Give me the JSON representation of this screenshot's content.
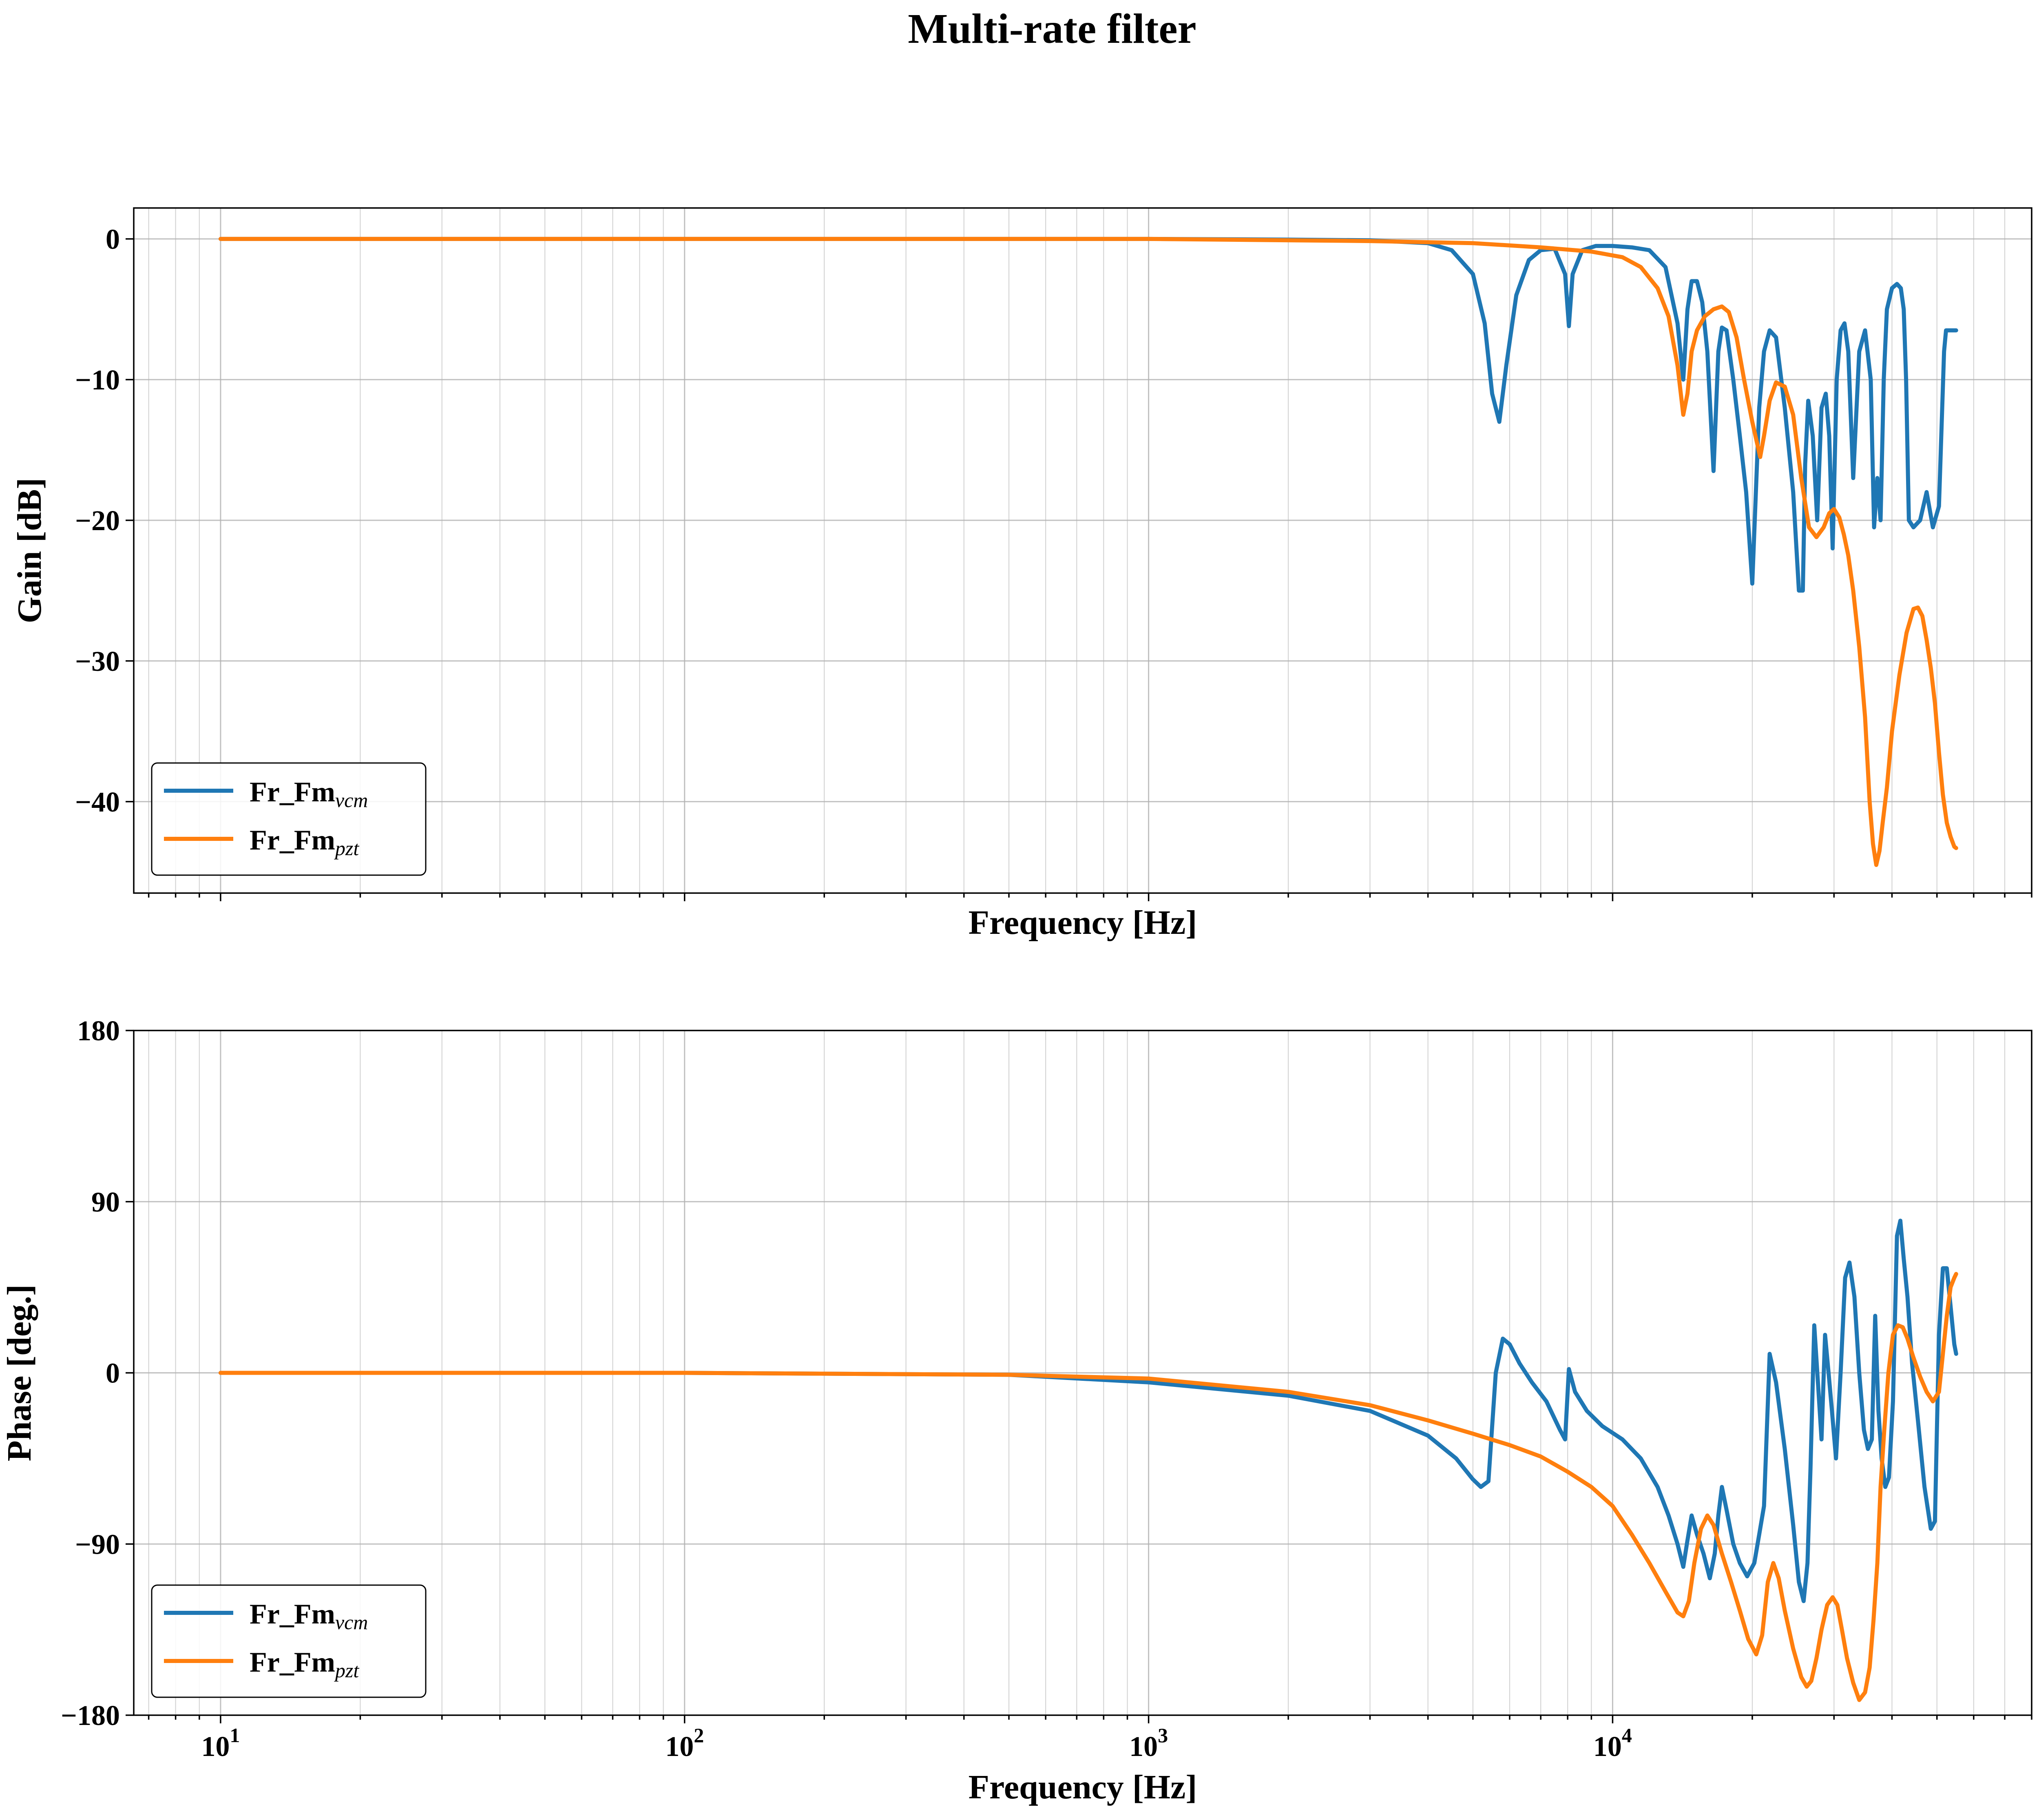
{
  "title": "Multi-rate filter",
  "colors": {
    "vcm": "#1f77b4",
    "pzt": "#ff7f0e",
    "grid": "#b0b0b0"
  },
  "chart_data": [
    {
      "type": "line",
      "name": "gain-chart",
      "xlabel": "Frequency [Hz]",
      "ylabel": "Gain [dB]",
      "xscale": "log",
      "xlim": [
        6.5,
        80000
      ],
      "ylim": [
        -46.5,
        2.2
      ],
      "yticks": [
        0,
        -10,
        -20,
        -30,
        -40
      ],
      "ytick_labels": [
        "0",
        "−10",
        "−20",
        "−30",
        "−40"
      ],
      "grid": true,
      "legend_position": "lower-left",
      "series": [
        {
          "name": "Fr_Fm",
          "name_sub": "vcm",
          "x": [
            10,
            100,
            1000,
            2000,
            3000,
            4000,
            4500,
            5000,
            5300,
            5500,
            5700,
            5900,
            6200,
            6600,
            7000,
            7500,
            7900,
            8050,
            8200,
            8600,
            9200,
            10000,
            11000,
            12000,
            13000,
            13800,
            14200,
            14500,
            14800,
            15200,
            15600,
            16000,
            16500,
            16900,
            17200,
            17600,
            18200,
            18800,
            19400,
            20000,
            20700,
            21200,
            21800,
            22500,
            23500,
            24500,
            25200,
            25700,
            26000,
            26400,
            27000,
            27600,
            28200,
            28800,
            29300,
            29800,
            30400,
            31000,
            31600,
            32200,
            33000,
            34000,
            35000,
            36000,
            36600,
            37200,
            37800,
            38400,
            39000,
            40000,
            41000,
            41800,
            42400,
            42900,
            43500,
            44500,
            46000,
            47500,
            49000,
            50500,
            51800,
            52300,
            52700,
            53300,
            54200,
            55000
          ],
          "y": [
            0,
            0,
            0,
            -0.05,
            -0.1,
            -0.3,
            -0.8,
            -2.5,
            -6,
            -11,
            -13,
            -9,
            -4,
            -1.5,
            -0.8,
            -0.7,
            -2.5,
            -6.2,
            -2.5,
            -0.8,
            -0.5,
            -0.5,
            -0.6,
            -0.8,
            -2,
            -6,
            -10,
            -5,
            -3,
            -3,
            -4.5,
            -8,
            -16.5,
            -8,
            -6.3,
            -6.5,
            -10,
            -14,
            -18,
            -24.5,
            -12,
            -8,
            -6.5,
            -7,
            -12,
            -18,
            -25,
            -25,
            -16,
            -11.5,
            -14,
            -20,
            -12,
            -11,
            -14,
            -22,
            -10,
            -6.5,
            -6,
            -8,
            -17,
            -8,
            -6.5,
            -10,
            -20.5,
            -17,
            -20,
            -10,
            -5,
            -3.5,
            -3.2,
            -3.5,
            -5,
            -10,
            -20,
            -20.5,
            -20,
            -18,
            -20.5,
            -19,
            -8,
            -6.5,
            -6.5,
            -6.5,
            -6.5,
            -6.5
          ]
        },
        {
          "name": "Fr_Fm",
          "name_sub": "pzt",
          "x": [
            10,
            100,
            1000,
            3000,
            5000,
            7000,
            9000,
            10500,
            11500,
            12500,
            13200,
            13800,
            14200,
            14500,
            14800,
            15200,
            15800,
            16500,
            17200,
            17800,
            18500,
            19200,
            20000,
            20800,
            21200,
            21800,
            22500,
            23500,
            24500,
            25500,
            26500,
            27500,
            28500,
            29300,
            30000,
            30800,
            31500,
            32200,
            33000,
            34000,
            35000,
            35800,
            36400,
            37000,
            37600,
            38200,
            39000,
            40000,
            41500,
            43000,
            44500,
            45500,
            46500,
            47500,
            48500,
            49500,
            50500,
            51500,
            52500,
            53500,
            54500,
            55000
          ],
          "y": [
            0,
            0,
            0,
            -0.15,
            -0.3,
            -0.6,
            -0.9,
            -1.3,
            -2,
            -3.5,
            -5.5,
            -9,
            -12.5,
            -11,
            -8,
            -6.5,
            -5.5,
            -5,
            -4.8,
            -5.2,
            -7,
            -10,
            -13,
            -15.5,
            -14,
            -11.5,
            -10.2,
            -10.5,
            -12.5,
            -17,
            -20.5,
            -21.2,
            -20.5,
            -19.5,
            -19.2,
            -19.8,
            -21,
            -22.5,
            -25,
            -29,
            -34,
            -40,
            -43,
            -44.5,
            -43.5,
            -41.5,
            -39,
            -35,
            -31,
            -28,
            -26.3,
            -26.2,
            -26.8,
            -28.5,
            -30.5,
            -33,
            -36.5,
            -39.5,
            -41.5,
            -42.5,
            -43.2,
            -43.3
          ]
        }
      ]
    },
    {
      "type": "line",
      "name": "phase-chart",
      "xlabel": "Frequency [Hz]",
      "ylabel": "Phase [deg.]",
      "xscale": "log",
      "xlim": [
        6.5,
        80000
      ],
      "ylim": [
        -180,
        180
      ],
      "yticks": [
        180,
        90,
        0,
        -90,
        -180
      ],
      "ytick_labels": [
        "180",
        "90",
        "0",
        "−90",
        "−180"
      ],
      "xticks": [
        10,
        100,
        1000,
        10000
      ],
      "xtick_labels": [
        {
          "base": "10",
          "exp": "1"
        },
        {
          "base": "10",
          "exp": "2"
        },
        {
          "base": "10",
          "exp": "3"
        },
        {
          "base": "10",
          "exp": "4"
        }
      ],
      "grid": true,
      "legend_position": "lower-left",
      "series": [
        {
          "name": "Fr_Fm",
          "name_sub": "vcm",
          "x": [
            10,
            100,
            500,
            1000,
            2000,
            3000,
            4000,
            4600,
            5000,
            5200,
            5400,
            5600,
            5800,
            6000,
            6300,
            6700,
            7200,
            7700,
            7900,
            8050,
            8300,
            8800,
            9500,
            10500,
            11500,
            12500,
            13200,
            13800,
            14200,
            14500,
            14800,
            15200,
            15700,
            16200,
            16600,
            16900,
            17200,
            17600,
            18200,
            18800,
            19500,
            20200,
            20700,
            21200,
            21800,
            22500,
            23500,
            24500,
            25200,
            25800,
            26300,
            26700,
            27200,
            27700,
            28200,
            28700,
            29200,
            29700,
            30300,
            31000,
            31700,
            32400,
            33200,
            34000,
            34800,
            35500,
            36200,
            36800,
            37400,
            38000,
            38700,
            39400,
            40200,
            41000,
            41700,
            42400,
            43200,
            44200,
            45500,
            47000,
            48500,
            49500,
            50500,
            51500,
            52500,
            53500,
            54500,
            55000
          ],
          "y": [
            0,
            0,
            -1,
            -5,
            -12,
            -20,
            -33,
            -45,
            -56,
            -60,
            -57,
            0,
            18,
            15,
            5,
            -5,
            -15,
            -30,
            -35,
            2,
            -10,
            -20,
            -28,
            -35,
            -45,
            -60,
            -75,
            -90,
            -102,
            -88,
            -75,
            -85,
            -95,
            -108,
            -95,
            -75,
            -60,
            -72,
            -90,
            -100,
            -107,
            -100,
            -85,
            -70,
            10,
            -5,
            -40,
            -80,
            -110,
            -120,
            -100,
            -50,
            25,
            -5,
            -35,
            20,
            0,
            -20,
            -45,
            0,
            50,
            58,
            40,
            0,
            -30,
            -40,
            -35,
            30,
            -20,
            -45,
            -60,
            -55,
            -15,
            72,
            80,
            60,
            40,
            5,
            -25,
            -60,
            -82,
            -78,
            20,
            55,
            55,
            35,
            15,
            10
          ]
        },
        {
          "name": "Fr_Fm",
          "name_sub": "pzt",
          "x": [
            10,
            100,
            500,
            1000,
            2000,
            3000,
            4000,
            5000,
            6000,
            7000,
            8000,
            9000,
            10000,
            11000,
            12000,
            13000,
            13800,
            14200,
            14600,
            15000,
            15500,
            16000,
            16500,
            17200,
            18000,
            18800,
            19600,
            20400,
            21000,
            21600,
            22200,
            22800,
            23500,
            24500,
            25500,
            26200,
            26800,
            27500,
            28200,
            29000,
            29800,
            30500,
            31200,
            32000,
            33000,
            34000,
            35000,
            35800,
            36500,
            37200,
            37800,
            38500,
            39300,
            40200,
            41200,
            42200,
            43200,
            44500,
            46000,
            47500,
            49000,
            50500,
            51500,
            52500,
            53500,
            54500,
            55000
          ],
          "y": [
            0,
            0,
            -1,
            -3,
            -10,
            -17,
            -25,
            -32,
            -38,
            -44,
            -52,
            -60,
            -70,
            -85,
            -100,
            -115,
            -126,
            -128,
            -120,
            -100,
            -82,
            -75,
            -80,
            -95,
            -110,
            -125,
            -140,
            -148,
            -138,
            -110,
            -100,
            -108,
            -125,
            -145,
            -160,
            -165,
            -162,
            -150,
            -135,
            -122,
            -118,
            -122,
            -135,
            -150,
            -163,
            -172,
            -168,
            -155,
            -130,
            -100,
            -60,
            -30,
            0,
            20,
            25,
            24,
            18,
            8,
            -2,
            -10,
            -15,
            -10,
            10,
            30,
            45,
            50,
            52
          ]
        }
      ]
    }
  ]
}
